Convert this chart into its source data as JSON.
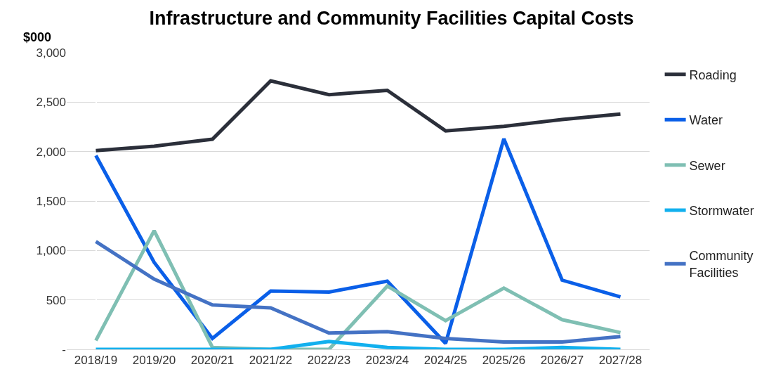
{
  "chart_data": {
    "type": "line",
    "title": "Infrastructure and Community Facilities Capital Costs",
    "ylabel": "$000",
    "categories": [
      "2018/19",
      "2019/20",
      "2020/21",
      "2021/22",
      "2022/23",
      "2023/24",
      "2024/25",
      "2025/26",
      "2026/27",
      "2027/28"
    ],
    "series": [
      {
        "name": "Roading",
        "color": "#2b2f3a",
        "values": [
          2010,
          2055,
          2125,
          2715,
          2575,
          2620,
          2210,
          2255,
          2325,
          2380
        ]
      },
      {
        "name": "Water",
        "color": "#0a5fe8",
        "values": [
          1960,
          880,
          110,
          590,
          580,
          690,
          60,
          2130,
          700,
          530
        ]
      },
      {
        "name": "Sewer",
        "color": "#7fbfb3",
        "values": [
          90,
          1200,
          20,
          0,
          0,
          640,
          290,
          620,
          300,
          170
        ]
      },
      {
        "name": "Stormwater",
        "color": "#12b0ee",
        "values": [
          0,
          0,
          0,
          0,
          80,
          20,
          0,
          0,
          20,
          0
        ]
      },
      {
        "name": "Community Facilities",
        "color": "#4472c4",
        "values": [
          1090,
          710,
          450,
          420,
          165,
          180,
          110,
          75,
          75,
          130
        ]
      }
    ],
    "ylim": [
      0,
      3000
    ],
    "yticks": [
      {
        "value": 0,
        "label": "-"
      },
      500,
      {
        "value": 1000,
        "label": "1,000"
      },
      {
        "value": 1500,
        "label": "1,500"
      },
      {
        "value": 2000,
        "label": "2,000"
      },
      {
        "value": 2500,
        "label": "2,500"
      },
      {
        "value": 3000,
        "label": "3,000"
      }
    ],
    "grid": "y",
    "legend": "right",
    "marker": "none",
    "line_style": "solid"
  }
}
